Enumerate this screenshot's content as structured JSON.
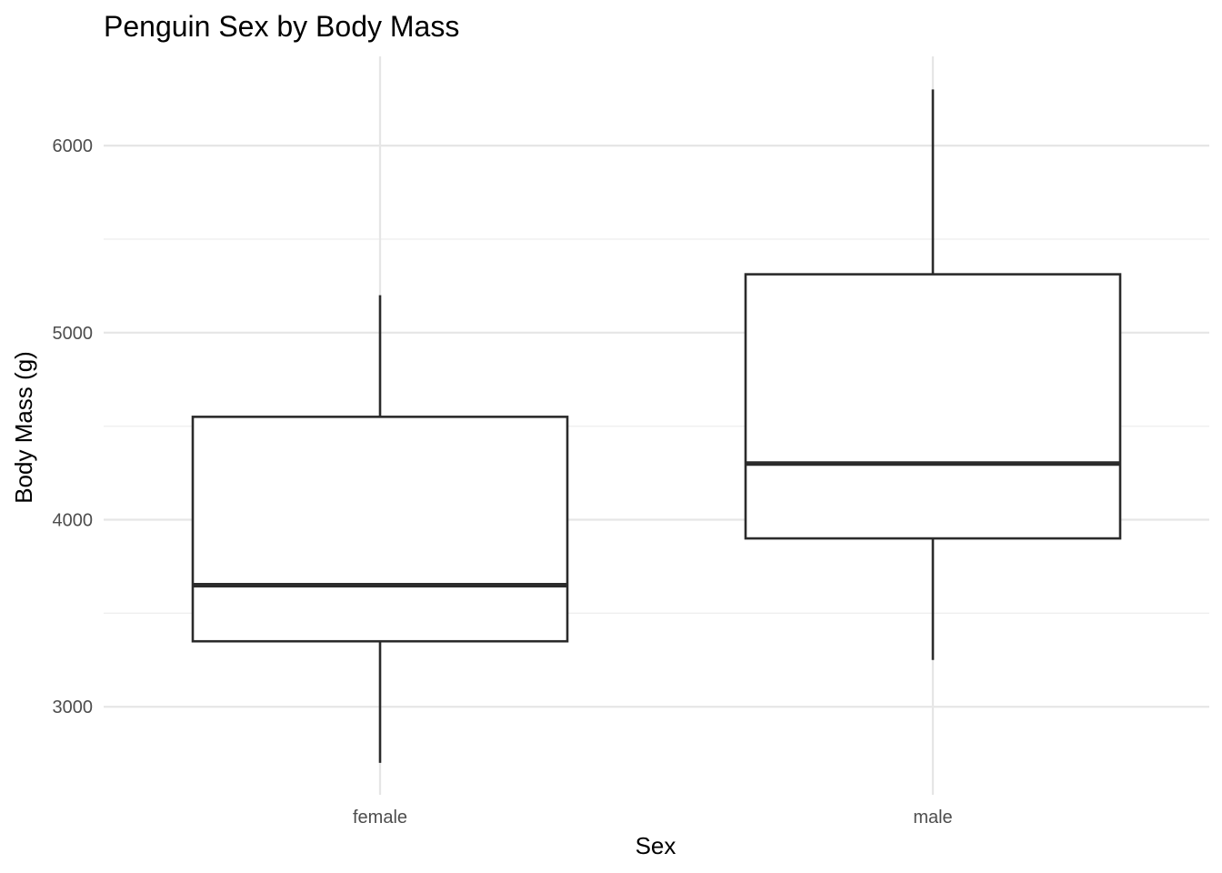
{
  "chart_data": {
    "type": "box",
    "title": "Penguin Sex by Body Mass",
    "xlabel": "Sex",
    "ylabel": "Body Mass (g)",
    "categories": [
      "female",
      "male"
    ],
    "boxes": [
      {
        "category": "female",
        "min": 2700,
        "q1": 3350,
        "median": 3650,
        "q3": 4550,
        "max": 5200
      },
      {
        "category": "male",
        "min": 3250,
        "q1": 3900,
        "median": 4300,
        "q3": 5312,
        "max": 6300
      }
    ],
    "yticks": [
      3000,
      4000,
      5000,
      6000
    ],
    "ylim": [
      2500,
      6500
    ],
    "grid": true,
    "legend": "none"
  }
}
